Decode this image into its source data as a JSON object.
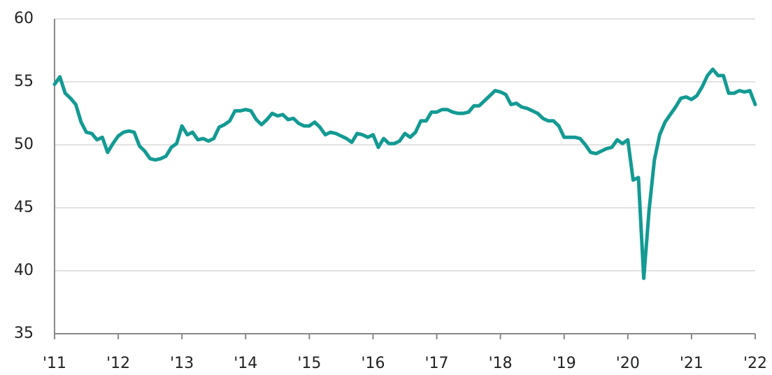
{
  "chart_data": {
    "type": "line",
    "categories": [
      "'11",
      null,
      null,
      null,
      null,
      null,
      null,
      null,
      null,
      null,
      null,
      null,
      "'12",
      null,
      null,
      null,
      null,
      null,
      null,
      null,
      null,
      null,
      null,
      null,
      "'13",
      null,
      null,
      null,
      null,
      null,
      null,
      null,
      null,
      null,
      null,
      null,
      "'14",
      null,
      null,
      null,
      null,
      null,
      null,
      null,
      null,
      null,
      null,
      null,
      "'15",
      null,
      null,
      null,
      null,
      null,
      null,
      null,
      null,
      null,
      null,
      null,
      "'16",
      null,
      null,
      null,
      null,
      null,
      null,
      null,
      null,
      null,
      null,
      null,
      "'17",
      null,
      null,
      null,
      null,
      null,
      null,
      null,
      null,
      null,
      null,
      null,
      "'18",
      null,
      null,
      null,
      null,
      null,
      null,
      null,
      null,
      null,
      null,
      null,
      "'19",
      null,
      null,
      null,
      null,
      null,
      null,
      null,
      null,
      null,
      null,
      null,
      "'20",
      null,
      null,
      null,
      null,
      null,
      null,
      null,
      null,
      null,
      null,
      null,
      "'21",
      null,
      null,
      null,
      null,
      null,
      null,
      null,
      null,
      null,
      null,
      null,
      "'22"
    ],
    "series": [
      {
        "color": "#139a93",
        "values": [
          54.8,
          55.4,
          54.1,
          53.7,
          53.2,
          51.8,
          51.0,
          50.9,
          50.4,
          50.6,
          49.4,
          50.1,
          50.7,
          51.0,
          51.1,
          51.0,
          49.9,
          49.5,
          48.9,
          48.8,
          48.9,
          49.1,
          49.8,
          50.1,
          51.5,
          50.8,
          51.0,
          50.4,
          50.5,
          50.3,
          50.5,
          51.4,
          51.6,
          51.9,
          52.7,
          52.7,
          52.8,
          52.7,
          52.0,
          51.6,
          52.0,
          52.5,
          52.3,
          52.4,
          52.0,
          52.1,
          51.7,
          51.5,
          51.5,
          51.8,
          51.4,
          50.8,
          51.0,
          50.9,
          50.7,
          50.5,
          50.2,
          50.9,
          50.8,
          50.6,
          50.8,
          49.8,
          50.5,
          50.1,
          50.1,
          50.3,
          50.9,
          50.6,
          51.0,
          51.9,
          51.9,
          52.6,
          52.6,
          52.8,
          52.8,
          52.6,
          52.5,
          52.5,
          52.6,
          53.1,
          53.1,
          53.5,
          53.9,
          54.3,
          54.2,
          54.0,
          53.2,
          53.3,
          53.0,
          52.9,
          52.7,
          52.5,
          52.1,
          51.9,
          51.9,
          51.5,
          50.6,
          50.6,
          50.6,
          50.5,
          50.0,
          49.4,
          49.3,
          49.5,
          49.7,
          49.8,
          50.4,
          50.1,
          50.4,
          47.2,
          47.4,
          39.4,
          44.8,
          48.8,
          50.8,
          51.8,
          52.4,
          53.0,
          53.7,
          53.8,
          53.6,
          53.9,
          54.6,
          55.5,
          56.0,
          55.5,
          55.5,
          54.1,
          54.1,
          54.3,
          54.2,
          54.3,
          53.2
        ]
      }
    ],
    "ylim": [
      35,
      60
    ],
    "yticks": [
      35,
      40,
      45,
      50,
      55,
      60
    ],
    "grid": true
  }
}
